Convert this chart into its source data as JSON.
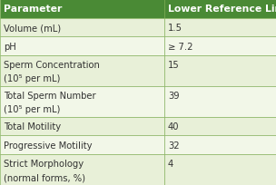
{
  "header": [
    "Parameter",
    "Lower Reference Limit"
  ],
  "rows": [
    [
      "Volume (mL)",
      "1.5"
    ],
    [
      "pH",
      "≥ 7.2"
    ],
    [
      "Sperm Concentration\n(10⁵ per mL)",
      "15"
    ],
    [
      "Total Sperm Number\n(10⁵ per mL)",
      "39"
    ],
    [
      "Total Motility",
      "40"
    ],
    [
      "Progressive Motility",
      "32"
    ],
    [
      "Strict Morphology\n(normal forms, %)",
      "4"
    ]
  ],
  "header_bg": "#4a8a35",
  "header_text_color": "#ffffff",
  "row_bg_light": "#e8f0d8",
  "row_bg_white": "#f2f7e8",
  "text_color": "#333333",
  "border_color": "#7aaa50",
  "col_split": 0.595,
  "font_size": 7.2,
  "header_font_size": 7.8
}
